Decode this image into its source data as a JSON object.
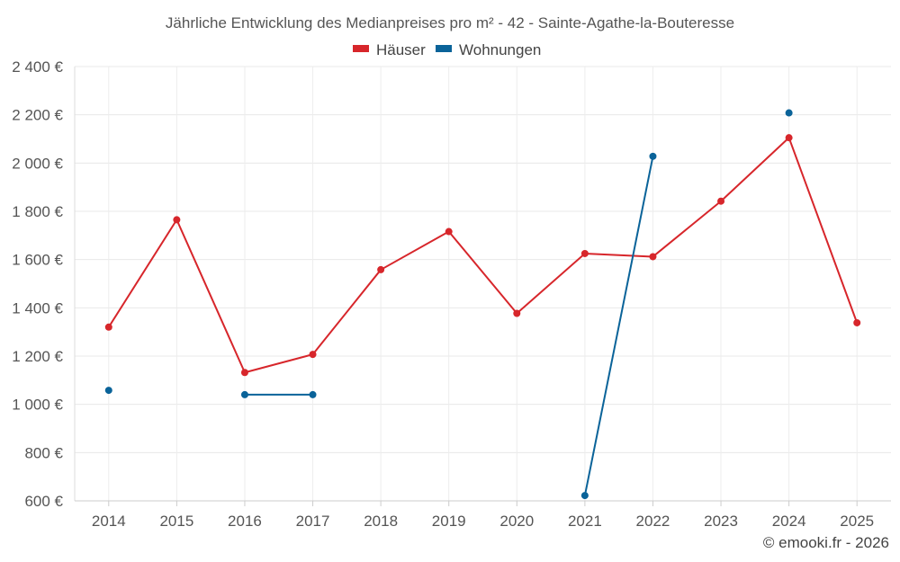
{
  "chart_data": {
    "type": "line",
    "title": "Jährliche Entwicklung des Medianpreises pro m² - 42 - Sainte-Agathe-la-Bouteresse",
    "categories": [
      "2014",
      "2015",
      "2016",
      "2017",
      "2018",
      "2019",
      "2020",
      "2021",
      "2022",
      "2023",
      "2024",
      "2025"
    ],
    "y_ticks": [
      600,
      800,
      1000,
      1200,
      1400,
      1600,
      1800,
      2000,
      2200,
      2400
    ],
    "y_tick_labels": [
      "600 €",
      "800 €",
      "1 000 €",
      "1 200 €",
      "1 400 €",
      "1 600 €",
      "1 800 €",
      "2 000 €",
      "2 200 €",
      "2 400 €"
    ],
    "ylim": [
      600,
      2400
    ],
    "grid": true,
    "legend_position": "top-center",
    "series": [
      {
        "name": "Häuser",
        "color": "#d7262b",
        "values": [
          1320,
          1765,
          1132,
          1207,
          1558,
          1716,
          1377,
          1625,
          1612,
          1842,
          2105,
          1338
        ]
      },
      {
        "name": "Wohnungen",
        "color": "#0a6399",
        "values": [
          1058,
          null,
          1040,
          1040,
          null,
          null,
          null,
          622,
          2028,
          null,
          2208,
          null
        ]
      }
    ]
  },
  "credit": "© emooki.fr - 2026"
}
